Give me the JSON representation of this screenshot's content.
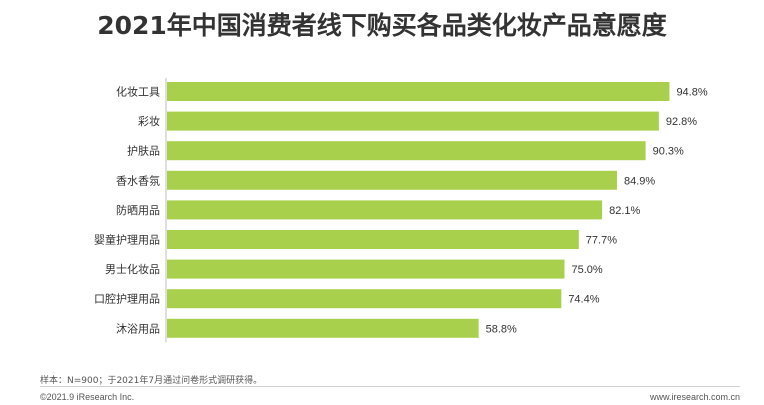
{
  "header": {
    "title": "2021年中国消费者线下购买各品类化妆产品意愿度"
  },
  "chart_data": {
    "type": "bar",
    "orientation": "horizontal",
    "categories": [
      "化妆工具",
      "彩妆",
      "护肤品",
      "香水香氛",
      "防晒用品",
      "婴童护理用品",
      "男士化妆品",
      "口腔护理用品",
      "沐浴用品"
    ],
    "values": [
      94.8,
      92.8,
      90.3,
      84.9,
      82.1,
      77.7,
      75.0,
      74.4,
      58.8
    ],
    "value_labels": [
      "94.8%",
      "92.8%",
      "90.3%",
      "84.9%",
      "82.1%",
      "77.7%",
      "75.0%",
      "74.4%",
      "58.8%"
    ],
    "xlim": [
      0,
      100
    ],
    "bar_color": "#a9d04d",
    "axis_color": "#bfbfbf",
    "grid": false,
    "legend": "none"
  },
  "footer": {
    "note": "样本：N=900；于2021年7月通过问卷形式调研获得。",
    "copyright": "©2021.9 iResearch Inc.",
    "website": "www.iresearch.com.cn"
  }
}
